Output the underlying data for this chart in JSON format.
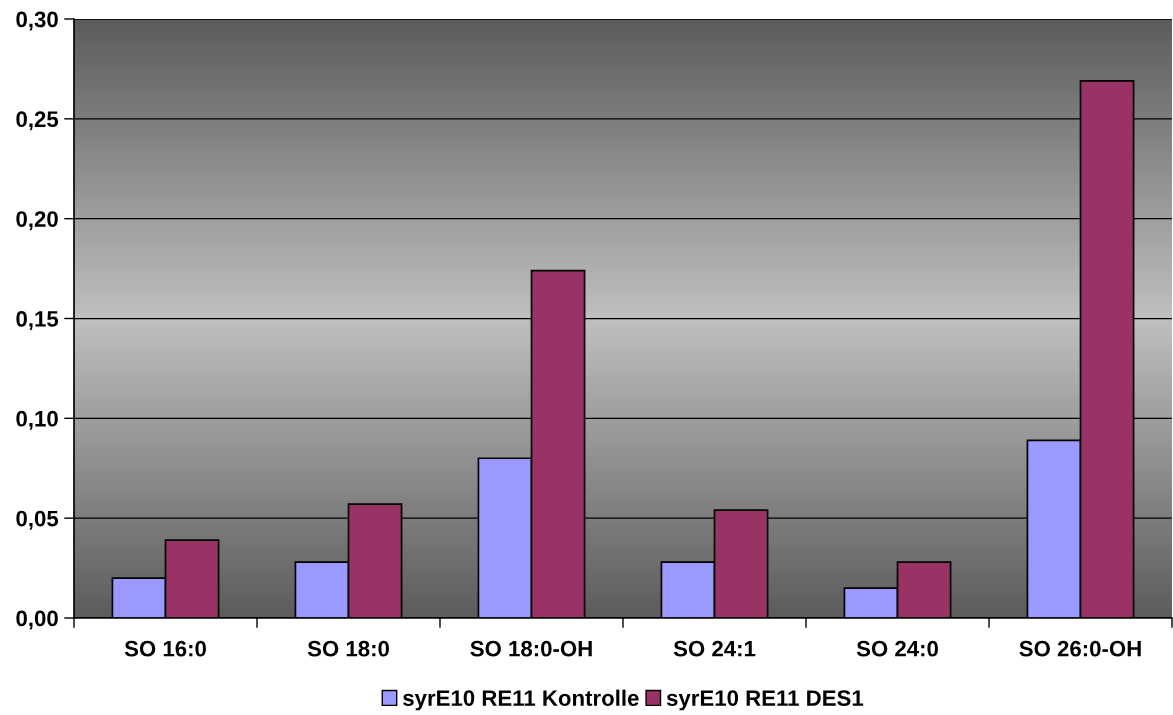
{
  "chart_data": {
    "type": "bar",
    "categories": [
      "SO 16:0",
      "SO 18:0",
      "SO 18:0-OH",
      "SO 24:1",
      "SO 24:0",
      "SO 26:0-OH"
    ],
    "series": [
      {
        "name": "syrE10 RE11 Kontrolle",
        "color": "#9999ff",
        "values": [
          0.02,
          0.028,
          0.08,
          0.028,
          0.015,
          0.089
        ]
      },
      {
        "name": "syrE10 RE11 DES1",
        "color": "#993366",
        "values": [
          0.039,
          0.057,
          0.174,
          0.054,
          0.028,
          0.269
        ]
      }
    ],
    "ylim": [
      0,
      0.3
    ],
    "yticks": [
      {
        "value": 0,
        "label": "0,00"
      },
      {
        "value": 0.05,
        "label": "0,05"
      },
      {
        "value": 0.1,
        "label": "0,10"
      },
      {
        "value": 0.15,
        "label": "0,15"
      },
      {
        "value": 0.2,
        "label": "0,20"
      },
      {
        "value": 0.25,
        "label": "0,25"
      },
      {
        "value": 0.3,
        "label": "0,30"
      }
    ],
    "grid": "y",
    "legend": "bottom"
  }
}
